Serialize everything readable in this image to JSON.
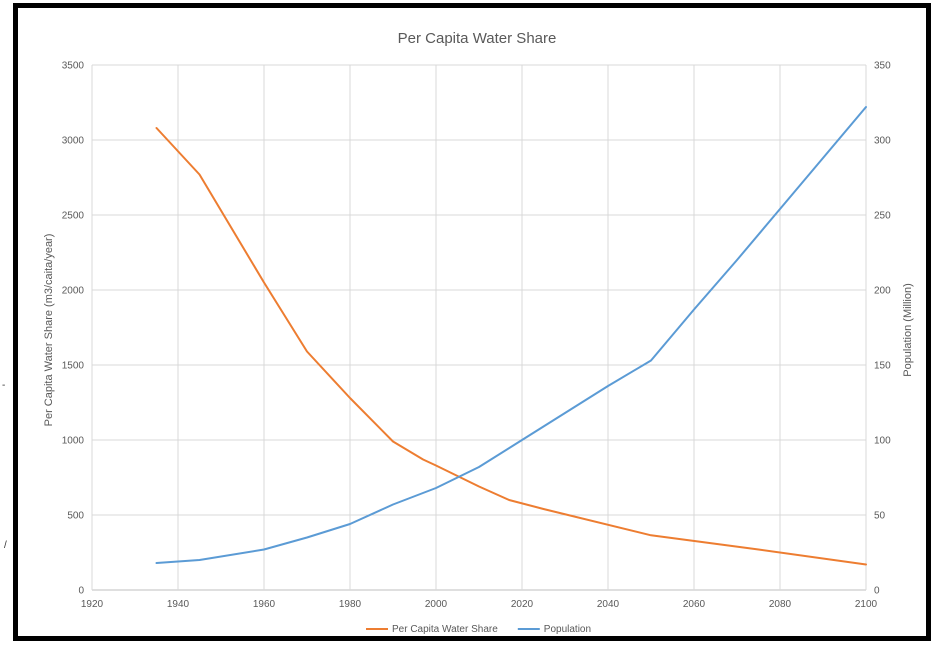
{
  "chart_data": {
    "type": "line",
    "title": "Per Capita Water Share",
    "xlabel": "",
    "ylabel": "Per Capita Water Share (m3/caita/year)",
    "y2label": "Population  (Million)",
    "xlim": [
      1920,
      2100
    ],
    "ylim": [
      0,
      3500
    ],
    "y2lim": [
      0,
      350
    ],
    "x_ticks": [
      "1920",
      "1940",
      "1960",
      "1980",
      "2000",
      "2020",
      "2040",
      "2060",
      "2080",
      "2100"
    ],
    "y_ticks": [
      "0",
      "500",
      "1000",
      "1500",
      "2000",
      "2500",
      "3000",
      "3500"
    ],
    "y2_ticks": [
      "0",
      "50",
      "100",
      "150",
      "200",
      "250",
      "300",
      "350"
    ],
    "grid": true,
    "legend_position": "bottom",
    "series": [
      {
        "name": "Per Capita Water Share",
        "axis": "left",
        "color": "#ed7d31",
        "x": [
          1935,
          1945,
          1960,
          1970,
          1980,
          1990,
          1997,
          2000,
          2010,
          2017,
          2025,
          2050,
          2075,
          2100
        ],
        "y": [
          3080,
          2770,
          2050,
          1590,
          1280,
          990,
          870,
          830,
          690,
          600,
          540,
          365,
          270,
          170
        ]
      },
      {
        "name": "Population",
        "axis": "right",
        "color": "#5b9bd5",
        "x": [
          1935,
          1945,
          1960,
          1970,
          1980,
          1990,
          2000,
          2010,
          2020,
          2030,
          2040,
          2050,
          2060,
          2070,
          2080,
          2090,
          2100
        ],
        "y": [
          18,
          20,
          27,
          35,
          44,
          57,
          68,
          82,
          100,
          118,
          136,
          153,
          187,
          220,
          254,
          288,
          322
        ]
      }
    ]
  },
  "side_marks": [
    "-",
    "/"
  ]
}
